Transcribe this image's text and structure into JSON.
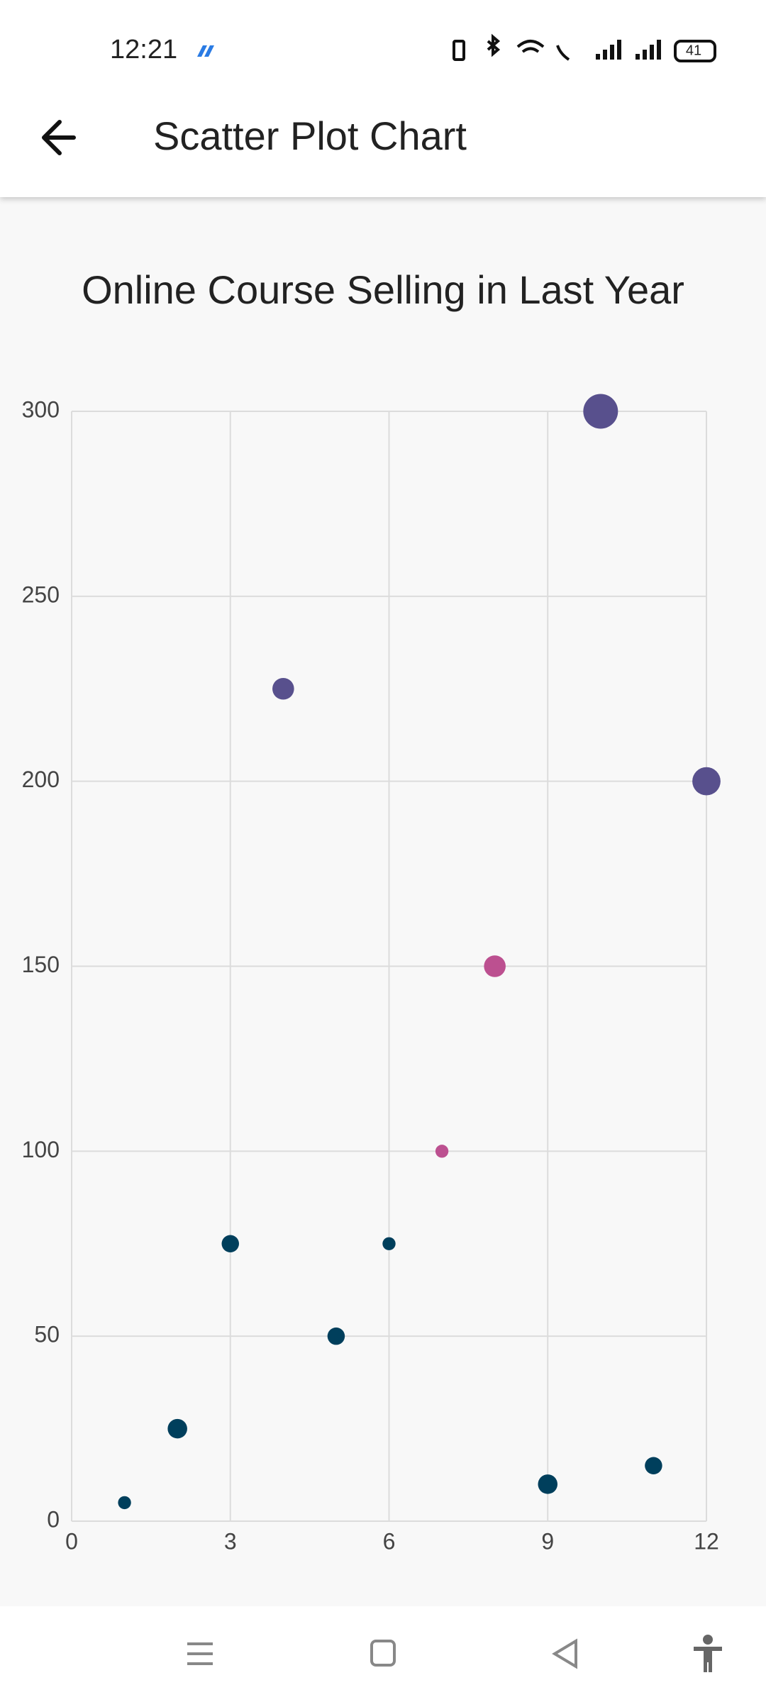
{
  "status_bar": {
    "time": "12:21",
    "battery": "41"
  },
  "app_bar": {
    "title": "Scatter Plot Chart"
  },
  "chart_data": {
    "type": "scatter",
    "title": "Online Course Selling in Last Year",
    "x": [
      1,
      2,
      3,
      4,
      5,
      6,
      7,
      8,
      9,
      10,
      11,
      12
    ],
    "values": [
      5,
      25,
      75,
      225,
      50,
      75,
      100,
      150,
      10,
      300,
      15,
      200
    ],
    "sizes": [
      6,
      9,
      8,
      10,
      8,
      6,
      6,
      10,
      9,
      16,
      8,
      13
    ],
    "colors": [
      "#003f5c",
      "#003f5c",
      "#003f5c",
      "#58508d",
      "#003f5c",
      "#003f5c",
      "#bc5090",
      "#bc5090",
      "#003f5c",
      "#58508d",
      "#003f5c",
      "#58508d"
    ],
    "xlim": [
      0,
      12
    ],
    "ylim": [
      0,
      300
    ],
    "xticks": [
      0,
      3,
      6,
      9,
      12
    ],
    "yticks": [
      0,
      50,
      100,
      150,
      200,
      250,
      300
    ],
    "grid": true
  }
}
